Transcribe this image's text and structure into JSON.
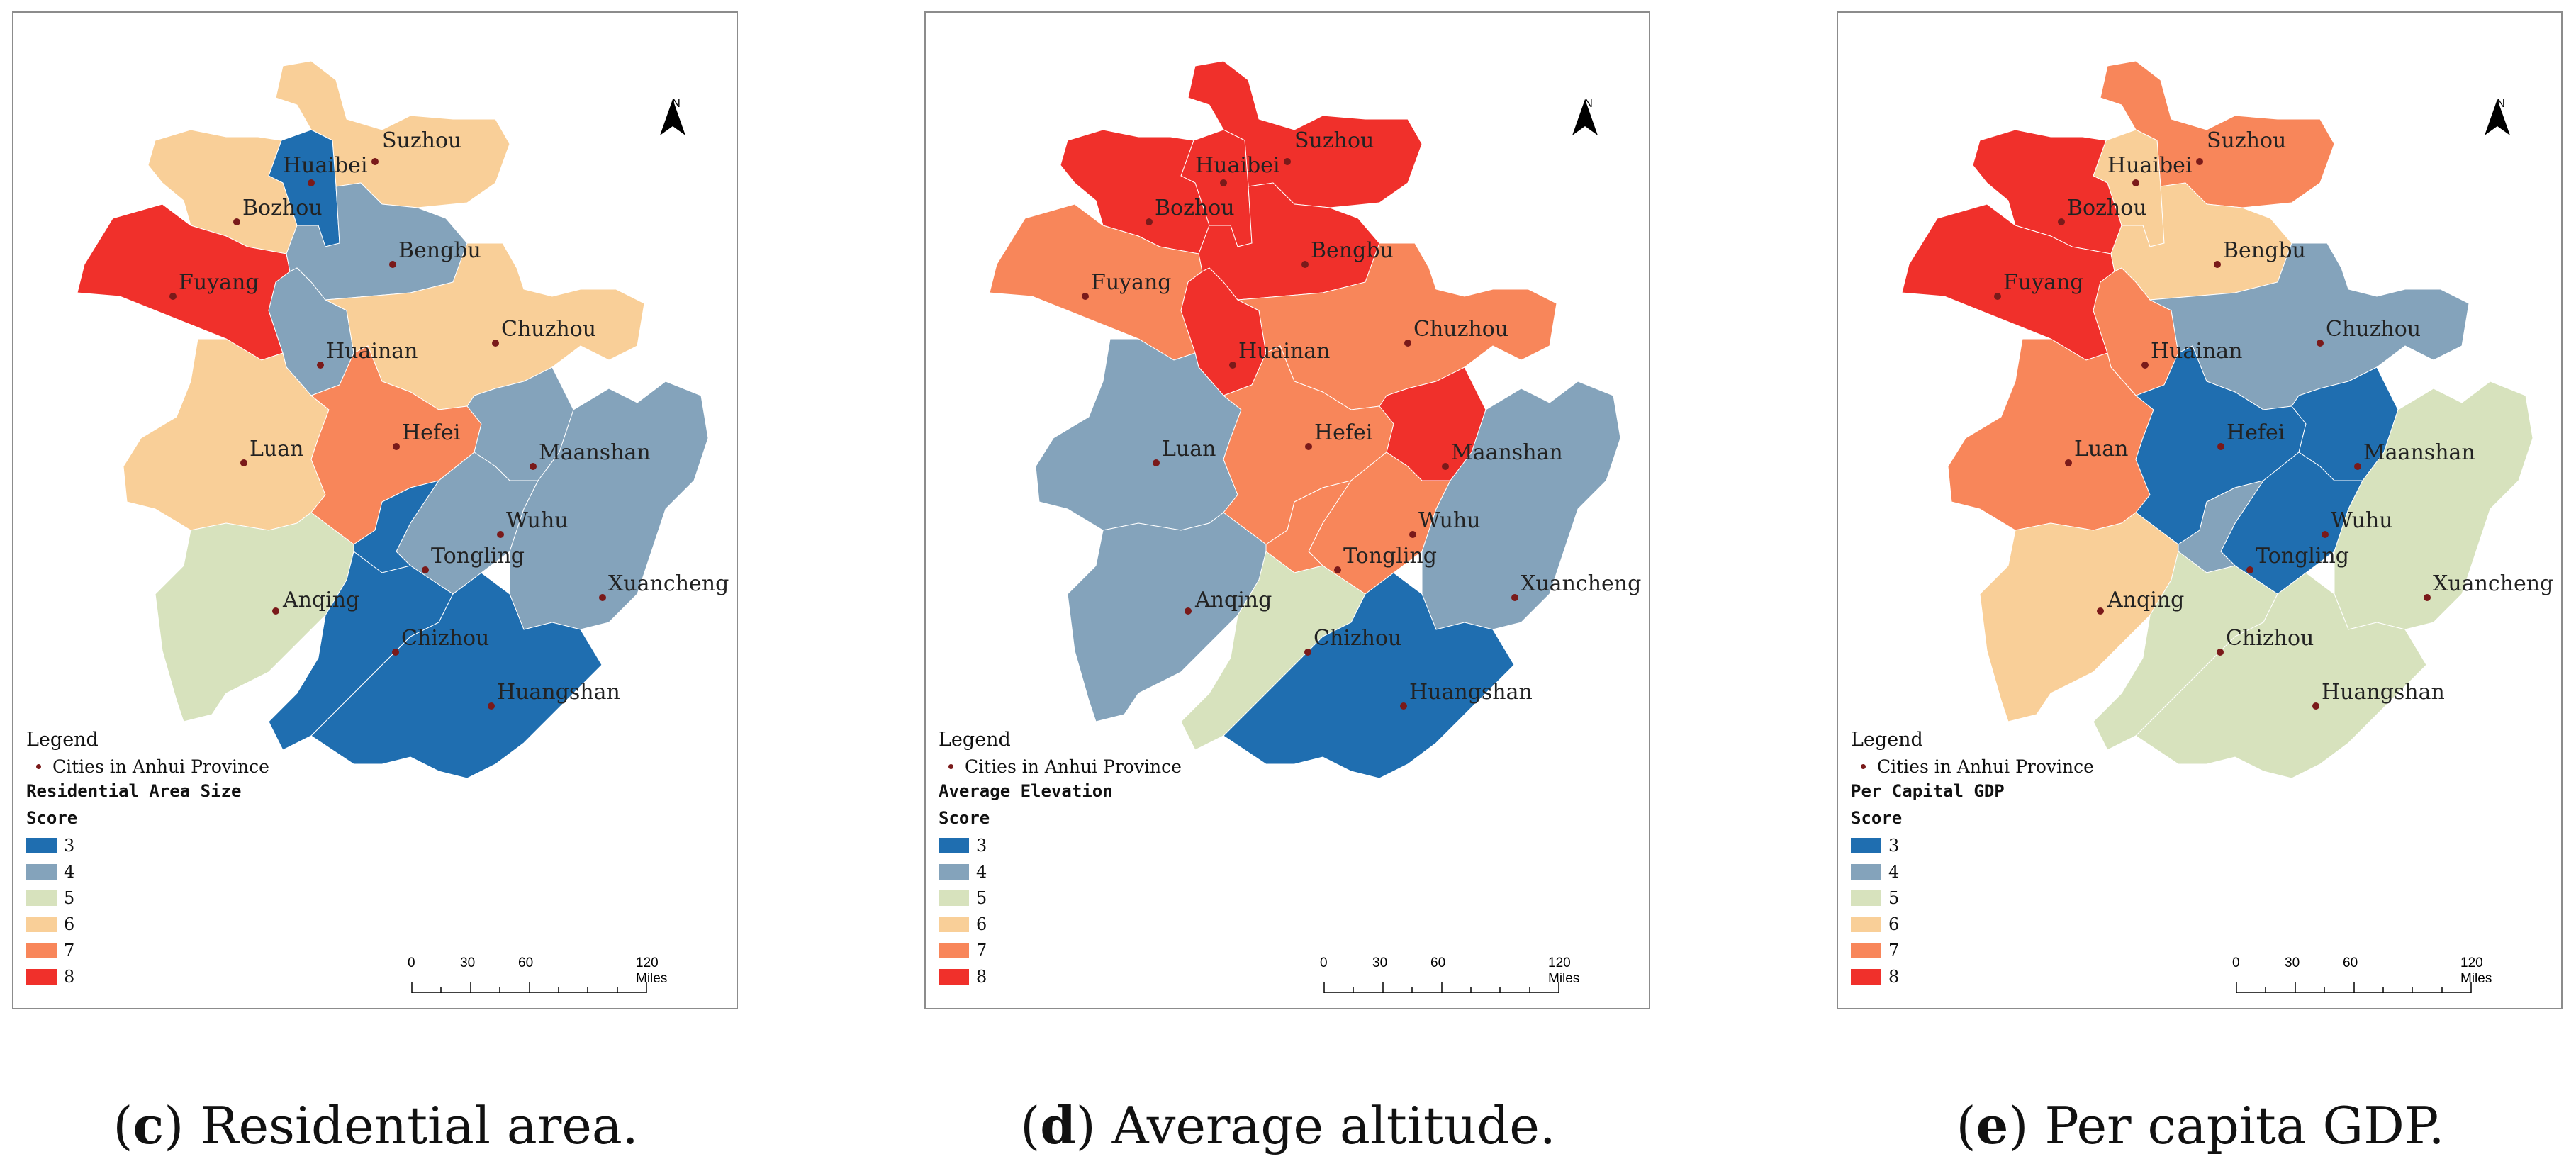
{
  "colors": {
    "3": "#1f6eb0",
    "4": "#84a3bb",
    "5": "#d7e2bd",
    "6": "#f9cf98",
    "7": "#f8865a",
    "8": "#f0302b"
  },
  "legend": {
    "title": "Legend",
    "cities_label": "Cities in Anhui Province",
    "score_label": "Score",
    "classes": [
      "3",
      "4",
      "5",
      "6",
      "7",
      "8"
    ]
  },
  "north_label": "N",
  "scale": {
    "ticks": [
      "0",
      "30",
      "60",
      "120 Miles"
    ]
  },
  "panels": [
    {
      "id": "c",
      "caption_letter": "c",
      "caption_text": ") Residential area.",
      "caption_open": "(",
      "variable": "Residential Area Size",
      "scores": {
        "Suzhou": 6,
        "Huaibei": 3,
        "Bozhou": 6,
        "Fuyang": 8,
        "Bengbu": 4,
        "Huainan": 4,
        "Chuzhou": 6,
        "Luan": 6,
        "Hefei": 7,
        "Maanshan": 4,
        "Wuhu": 4,
        "Tongling": 3,
        "Anqing": 5,
        "Xuancheng": 4,
        "Chizhou": 3,
        "Huangshan": 3
      }
    },
    {
      "id": "d",
      "caption_letter": "d",
      "caption_text": ") Average altitude.",
      "caption_open": "(",
      "variable": "Average Elevation",
      "scores": {
        "Suzhou": 8,
        "Huaibei": 8,
        "Bozhou": 8,
        "Fuyang": 7,
        "Bengbu": 8,
        "Huainan": 8,
        "Chuzhou": 7,
        "Luan": 4,
        "Hefei": 7,
        "Maanshan": 8,
        "Wuhu": 7,
        "Tongling": 7,
        "Anqing": 4,
        "Xuancheng": 4,
        "Chizhou": 5,
        "Huangshan": 3
      }
    },
    {
      "id": "e",
      "caption_letter": "e",
      "caption_text": ") Per capita GDP.",
      "caption_open": "(",
      "variable": "Per Capital GDP",
      "scores": {
        "Suzhou": 7,
        "Huaibei": 6,
        "Bozhou": 8,
        "Fuyang": 8,
        "Bengbu": 6,
        "Huainan": 7,
        "Chuzhou": 4,
        "Luan": 7,
        "Hefei": 3,
        "Maanshan": 3,
        "Wuhu": 3,
        "Tongling": 4,
        "Anqing": 6,
        "Xuancheng": 5,
        "Chizhou": 5,
        "Huangshan": 5
      }
    }
  ]
}
